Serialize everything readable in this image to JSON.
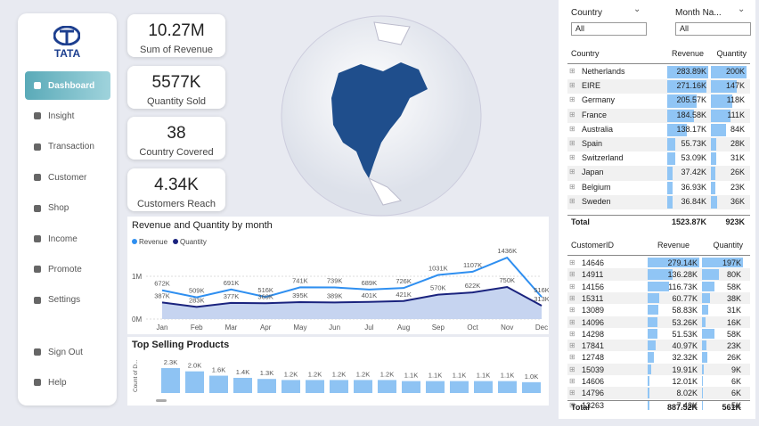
{
  "logo": "TATA",
  "nav": [
    "Dashboard",
    "Insight",
    "Transaction",
    "Customer",
    "Shop",
    "Income",
    "Promote",
    "Settings"
  ],
  "nav_bottom": [
    "Sign Out",
    "Help"
  ],
  "kpis": [
    {
      "value": "10.27M",
      "label": "Sum of Revenue"
    },
    {
      "value": "5577K",
      "label": "Quantity Sold"
    },
    {
      "value": "38",
      "label": "Country Covered"
    },
    {
      "value": "4.34K",
      "label": "Customers Reach"
    }
  ],
  "line_chart": {
    "type": "line",
    "title": "Revenue and Quantity by month",
    "categories": [
      "Jan",
      "Feb",
      "Mar",
      "Apr",
      "May",
      "Jun",
      "Jul",
      "Aug",
      "Sep",
      "Oct",
      "Nov",
      "Dec"
    ],
    "ylim": [
      0,
      1500000
    ],
    "yticks": [
      {
        "value": 0,
        "label": "0M"
      },
      {
        "value": 1000000,
        "label": "1M"
      }
    ],
    "series": [
      {
        "name": "Revenue",
        "color": "#2f8ff0",
        "values": [
          672000,
          509000,
          691000,
          516000,
          741000,
          739000,
          689000,
          726000,
          1031000,
          1107000,
          1436000,
          516000
        ],
        "value_labels": [
          "672K",
          "509K",
          "691K",
          "516K",
          "741K",
          "739K",
          "689K",
          "726K",
          "1031K",
          "1107K",
          "1436K",
          "516K"
        ]
      },
      {
        "name": "Quantity",
        "color": "#1a237e",
        "values": [
          387000,
          283000,
          377000,
          369000,
          395000,
          389000,
          401000,
          421000,
          570000,
          622000,
          750000,
          313000
        ],
        "value_labels": [
          "387K",
          "283K",
          "377K",
          "369K",
          "395K",
          "389K",
          "401K",
          "421K",
          "570K",
          "622K",
          "750K",
          "313K"
        ]
      }
    ]
  },
  "bar_chart": {
    "type": "bar",
    "title": "Top Selling Products",
    "ylabel": "Count of D...",
    "color": "#8ec3f3",
    "ylim": [
      0,
      2500
    ],
    "values": [
      2300,
      2000,
      1600,
      1400,
      1300,
      1200,
      1200,
      1200,
      1200,
      1200,
      1100,
      1100,
      1100,
      1100,
      1100,
      1000
    ],
    "value_labels": [
      "2.3K",
      "2.0K",
      "1.6K",
      "1.4K",
      "1.3K",
      "1.2K",
      "1.2K",
      "1.2K",
      "1.2K",
      "1.2K",
      "1.1K",
      "1.1K",
      "1.1K",
      "1.1K",
      "1.1K",
      "1.0K"
    ]
  },
  "filters": [
    {
      "label": "Country",
      "value": "All"
    },
    {
      "label": "Month Na...",
      "value": "All"
    }
  ],
  "country_table": {
    "columns": [
      "Country",
      "Revenue",
      "Quantity"
    ],
    "rows": [
      [
        "Netherlands",
        "283.89K",
        "200K"
      ],
      [
        "EIRE",
        "271.16K",
        "147K"
      ],
      [
        "Germany",
        "205.57K",
        "118K"
      ],
      [
        "France",
        "184.58K",
        "111K"
      ],
      [
        "Australia",
        "138.17K",
        "84K"
      ],
      [
        "Spain",
        "55.73K",
        "28K"
      ],
      [
        "Switzerland",
        "53.09K",
        "31K"
      ],
      [
        "Japan",
        "37.42K",
        "26K"
      ],
      [
        "Belgium",
        "36.93K",
        "23K"
      ],
      [
        "Sweden",
        "36.84K",
        "36K"
      ]
    ],
    "total": [
      "Total",
      "1523.87K",
      "923K"
    ]
  },
  "customer_table": {
    "columns": [
      "CustomerID",
      "Revenue",
      "Quantity"
    ],
    "rows": [
      [
        "14646",
        "279.14K",
        "197K"
      ],
      [
        "14911",
        "136.28K",
        "80K"
      ],
      [
        "14156",
        "116.73K",
        "58K"
      ],
      [
        "15311",
        "60.77K",
        "38K"
      ],
      [
        "13089",
        "58.83K",
        "31K"
      ],
      [
        "14096",
        "53.26K",
        "16K"
      ],
      [
        "14298",
        "51.53K",
        "58K"
      ],
      [
        "17841",
        "40.97K",
        "23K"
      ],
      [
        "12748",
        "32.32K",
        "26K"
      ],
      [
        "15039",
        "19.91K",
        "9K"
      ],
      [
        "14606",
        "12.01K",
        "6K"
      ],
      [
        "14796",
        "8.02K",
        "6K"
      ],
      [
        "13263",
        "7.43K",
        "5K"
      ]
    ],
    "total": [
      "Total",
      "887.52K",
      "561K"
    ]
  }
}
